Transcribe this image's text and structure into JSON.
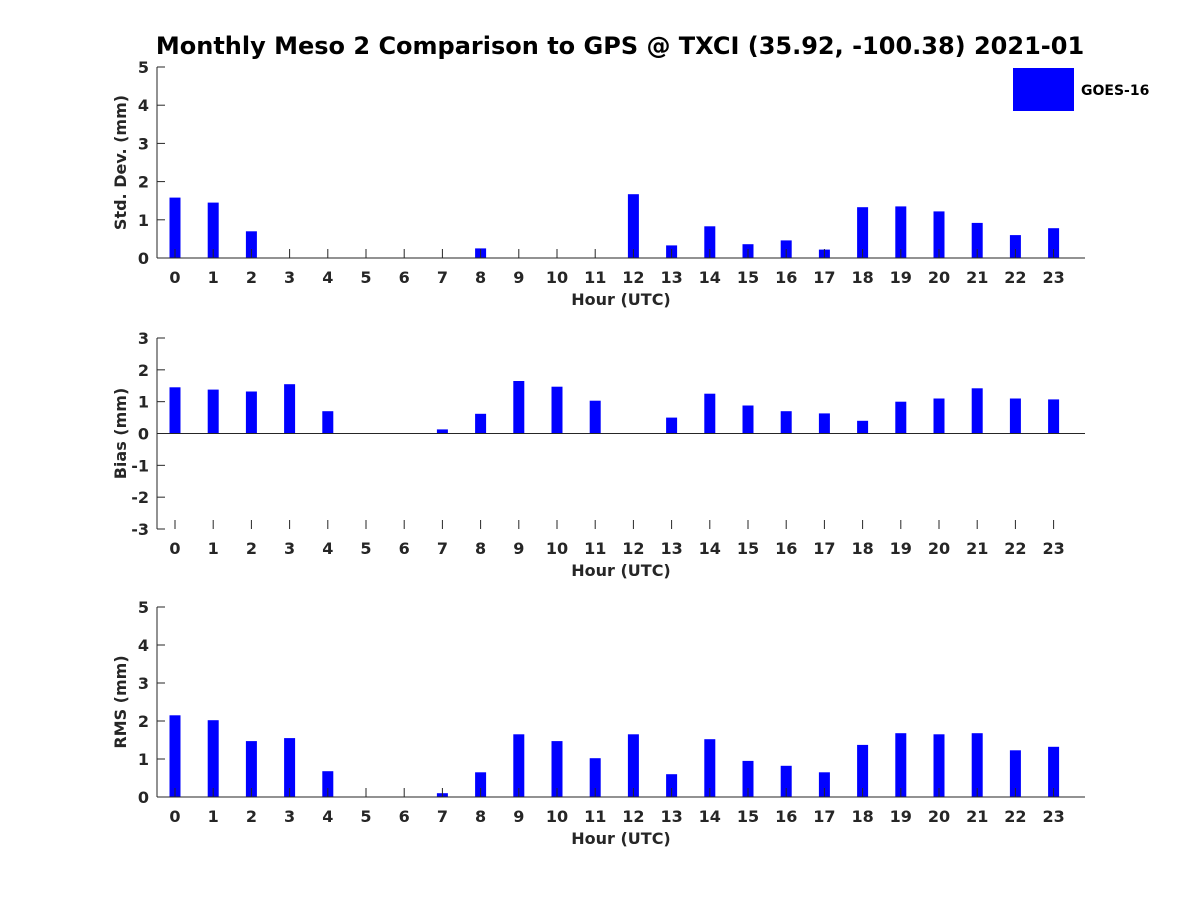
{
  "title": "Monthly Meso 2 Comparison to GPS @ TXCI (35.92, -100.38) 2021-01",
  "colors": {
    "bar": "#0000ff",
    "axis": "#262626"
  },
  "legend": {
    "label": "GOES-16",
    "placement": "top-right"
  },
  "chart_data": [
    {
      "type": "bar",
      "ylabel": "Std. Dev. (mm)",
      "xlabel": "Hour (UTC)",
      "ylim": [
        0,
        5
      ],
      "yticks": [
        0,
        1,
        2,
        3,
        4,
        5
      ],
      "categories": [
        0,
        1,
        2,
        3,
        4,
        5,
        6,
        7,
        8,
        9,
        10,
        11,
        12,
        13,
        14,
        15,
        16,
        17,
        18,
        19,
        20,
        21,
        22,
        23
      ],
      "series": [
        {
          "name": "GOES-16",
          "values": [
            1.58,
            1.45,
            0.7,
            0,
            0,
            0,
            0,
            0,
            0.25,
            0,
            0,
            0,
            1.67,
            0.33,
            0.83,
            0.36,
            0.46,
            0.22,
            1.33,
            1.35,
            1.22,
            0.92,
            0.6,
            0.78
          ]
        }
      ]
    },
    {
      "type": "bar",
      "ylabel": "Bias (mm)",
      "xlabel": "Hour (UTC)",
      "ylim": [
        -3,
        3
      ],
      "yticks": [
        -3,
        -2,
        -1,
        0,
        1,
        2,
        3
      ],
      "categories": [
        0,
        1,
        2,
        3,
        4,
        5,
        6,
        7,
        8,
        9,
        10,
        11,
        12,
        13,
        14,
        15,
        16,
        17,
        18,
        19,
        20,
        21,
        22,
        23
      ],
      "series": [
        {
          "name": "GOES-16",
          "values": [
            1.45,
            1.38,
            1.32,
            1.55,
            0.7,
            0,
            0,
            0.13,
            0.62,
            1.65,
            1.47,
            1.03,
            0,
            0.5,
            1.25,
            0.88,
            0.7,
            0.63,
            0.4,
            1.0,
            1.1,
            1.42,
            1.1,
            1.07
          ]
        }
      ]
    },
    {
      "type": "bar",
      "ylabel": "RMS (mm)",
      "xlabel": "Hour (UTC)",
      "ylim": [
        0,
        5
      ],
      "yticks": [
        0,
        1,
        2,
        3,
        4,
        5
      ],
      "categories": [
        0,
        1,
        2,
        3,
        4,
        5,
        6,
        7,
        8,
        9,
        10,
        11,
        12,
        13,
        14,
        15,
        16,
        17,
        18,
        19,
        20,
        21,
        22,
        23
      ],
      "series": [
        {
          "name": "GOES-16",
          "values": [
            2.15,
            2.02,
            1.47,
            1.55,
            0.68,
            0,
            0,
            0.1,
            0.65,
            1.65,
            1.47,
            1.02,
            1.65,
            0.6,
            1.52,
            0.95,
            0.82,
            0.65,
            1.37,
            1.68,
            1.65,
            1.68,
            1.23,
            1.32
          ]
        }
      ]
    }
  ]
}
